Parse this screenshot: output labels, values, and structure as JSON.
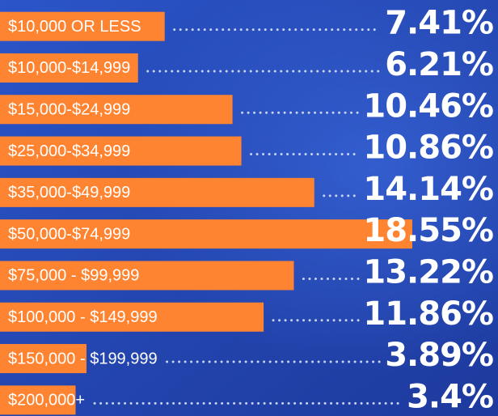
{
  "chart_data": {
    "type": "bar",
    "categories": [
      "$10,000 OR LESS",
      "$10,000-$14,999",
      "$15,000-$24,999",
      "$25,000-$34,999",
      "$35,000-$49,999",
      "$50,000-$74,999",
      "$75,000 - $99,999",
      "$100,000 - $149,999",
      "$150,000 - $199,999",
      "$200,000+"
    ],
    "values": [
      7.41,
      6.21,
      10.46,
      10.86,
      14.14,
      18.55,
      13.22,
      11.86,
      3.89,
      3.4
    ],
    "value_labels": [
      "7.41%",
      "6.21%",
      "10.46%",
      "10.86%",
      "14.14%",
      "18.55%",
      "13.22%",
      "11.86%",
      "3.89%",
      "3.4%"
    ],
    "color": "#ff8431"
  }
}
